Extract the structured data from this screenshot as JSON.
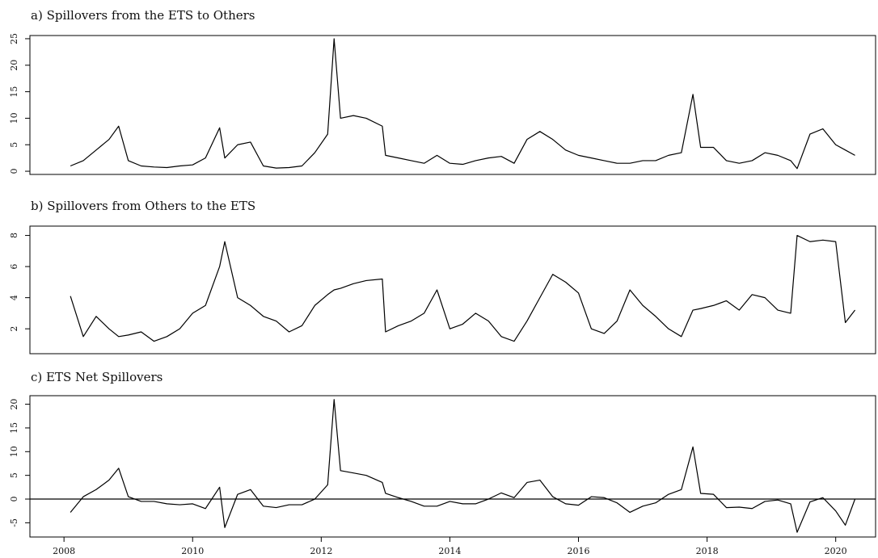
{
  "chart_data": [
    {
      "type": "line",
      "title": "a) Spillovers from the ETS to Others",
      "color": "#000000",
      "x": [
        2008.1,
        2008.3,
        2008.5,
        2008.7,
        2008.85,
        2009.0,
        2009.2,
        2009.4,
        2009.6,
        2009.8,
        2010.0,
        2010.2,
        2010.42,
        2010.5,
        2010.7,
        2010.9,
        2011.1,
        2011.3,
        2011.5,
        2011.7,
        2011.9,
        2012.1,
        2012.2,
        2012.3,
        2012.5,
        2012.7,
        2012.95,
        2013.0,
        2013.2,
        2013.4,
        2013.6,
        2013.8,
        2014.0,
        2014.2,
        2014.4,
        2014.6,
        2014.8,
        2015.0,
        2015.2,
        2015.4,
        2015.6,
        2015.8,
        2016.0,
        2016.2,
        2016.4,
        2016.6,
        2016.8,
        2017.0,
        2017.2,
        2017.4,
        2017.6,
        2017.78,
        2017.9,
        2018.1,
        2018.3,
        2018.5,
        2018.7,
        2018.9,
        2019.1,
        2019.3,
        2019.4,
        2019.6,
        2019.8,
        2020.0,
        2020.15,
        2020.3
      ],
      "values": [
        1,
        2,
        4,
        6,
        8.5,
        2,
        1,
        0.8,
        0.7,
        1,
        1.2,
        2.5,
        8.2,
        2.5,
        5,
        5.5,
        1,
        0.6,
        0.7,
        1,
        3.5,
        7,
        25,
        10,
        10.5,
        10,
        8.5,
        3,
        2.5,
        2,
        1.5,
        3,
        1.5,
        1.3,
        2,
        2.5,
        2.8,
        1.5,
        6,
        7.5,
        6,
        4,
        3,
        2.5,
        2,
        1.5,
        1.5,
        2,
        2,
        3,
        3.5,
        14.5,
        4.5,
        4.5,
        2,
        1.5,
        2,
        3.5,
        3,
        2,
        0.5,
        7,
        8,
        5,
        4,
        3
      ],
      "xlim": [
        2007.47,
        2020.62
      ],
      "ylim": [
        -0.6,
        25.6
      ],
      "yticks": [
        0,
        5,
        10,
        15,
        20,
        25
      ]
    },
    {
      "type": "line",
      "title": "b) Spillovers from Others to the ETS",
      "color": "#000000",
      "x": [
        2008.1,
        2008.3,
        2008.5,
        2008.7,
        2008.85,
        2009.0,
        2009.2,
        2009.4,
        2009.6,
        2009.8,
        2010.0,
        2010.2,
        2010.42,
        2010.5,
        2010.7,
        2010.9,
        2011.1,
        2011.3,
        2011.5,
        2011.7,
        2011.9,
        2012.1,
        2012.2,
        2012.3,
        2012.5,
        2012.7,
        2012.95,
        2013.0,
        2013.2,
        2013.4,
        2013.6,
        2013.8,
        2014.0,
        2014.2,
        2014.4,
        2014.6,
        2014.8,
        2015.0,
        2015.2,
        2015.4,
        2015.6,
        2015.8,
        2016.0,
        2016.2,
        2016.4,
        2016.6,
        2016.8,
        2017.0,
        2017.2,
        2017.4,
        2017.6,
        2017.78,
        2017.9,
        2018.1,
        2018.3,
        2018.5,
        2018.7,
        2018.9,
        2019.1,
        2019.3,
        2019.4,
        2019.6,
        2019.8,
        2020.0,
        2020.15,
        2020.3
      ],
      "values": [
        4.1,
        1.5,
        2.8,
        2,
        1.5,
        1.6,
        1.8,
        1.2,
        1.5,
        2,
        3,
        3.5,
        6,
        7.6,
        4,
        3.5,
        2.8,
        2.5,
        1.8,
        2.2,
        3.5,
        4.2,
        4.5,
        4.6,
        4.9,
        5.1,
        5.2,
        1.8,
        2.2,
        2.5,
        3,
        4.5,
        2,
        2.3,
        3,
        2.5,
        1.5,
        1.2,
        2.5,
        4,
        5.5,
        5,
        4.3,
        2,
        1.7,
        2.5,
        4.5,
        3.5,
        2.8,
        2,
        1.5,
        3.2,
        3.3,
        3.5,
        3.8,
        3.2,
        4.2,
        4,
        3.2,
        3,
        8,
        7.6,
        7.7,
        7.6,
        2.4,
        3.2
      ],
      "xlim": [
        2007.47,
        2020.62
      ],
      "ylim": [
        0.4,
        8.6
      ],
      "yticks": [
        2,
        4,
        6,
        8
      ]
    },
    {
      "type": "line",
      "title": "c) ETS Net Spillovers",
      "color": "#000000",
      "x": [
        2008.1,
        2008.3,
        2008.5,
        2008.7,
        2008.85,
        2009.0,
        2009.2,
        2009.4,
        2009.6,
        2009.8,
        2010.0,
        2010.2,
        2010.42,
        2010.5,
        2010.7,
        2010.9,
        2011.1,
        2011.3,
        2011.5,
        2011.7,
        2011.9,
        2012.1,
        2012.2,
        2012.3,
        2012.5,
        2012.7,
        2012.95,
        2013.0,
        2013.2,
        2013.4,
        2013.6,
        2013.8,
        2014.0,
        2014.2,
        2014.4,
        2014.6,
        2014.8,
        2015.0,
        2015.2,
        2015.4,
        2015.6,
        2015.8,
        2016.0,
        2016.2,
        2016.4,
        2016.6,
        2016.8,
        2017.0,
        2017.2,
        2017.4,
        2017.6,
        2017.78,
        2017.9,
        2018.1,
        2018.3,
        2018.5,
        2018.7,
        2018.9,
        2019.1,
        2019.3,
        2019.4,
        2019.6,
        2019.8,
        2020.0,
        2020.15,
        2020.3
      ],
      "values": [
        -2.8,
        0.5,
        2,
        4,
        6.5,
        0.5,
        -0.5,
        -0.5,
        -1,
        -1.2,
        -1,
        -2,
        2.5,
        -6,
        1,
        2,
        -1.5,
        -1.8,
        -1.2,
        -1.2,
        0,
        3,
        21,
        6,
        5.5,
        5,
        3.5,
        1.2,
        0.3,
        -0.5,
        -1.5,
        -1.5,
        -0.5,
        -1,
        -1,
        0,
        1.3,
        0.3,
        3.5,
        4,
        0.5,
        -1,
        -1.3,
        0.5,
        0.3,
        -0.8,
        -2.8,
        -1.5,
        -0.8,
        1,
        2,
        11,
        1.2,
        1,
        -1.8,
        -1.7,
        -2,
        -0.5,
        -0.2,
        -1,
        -7,
        -0.6,
        0.3,
        -2.5,
        -5.5,
        0
      ],
      "xlim": [
        2007.47,
        2020.62
      ],
      "ylim": [
        -8,
        21.8
      ],
      "yticks": [
        -5,
        0,
        5,
        10,
        15,
        20
      ],
      "hline": 0,
      "xticks": [
        2008,
        2010,
        2012,
        2014,
        2016,
        2018,
        2020
      ]
    }
  ]
}
